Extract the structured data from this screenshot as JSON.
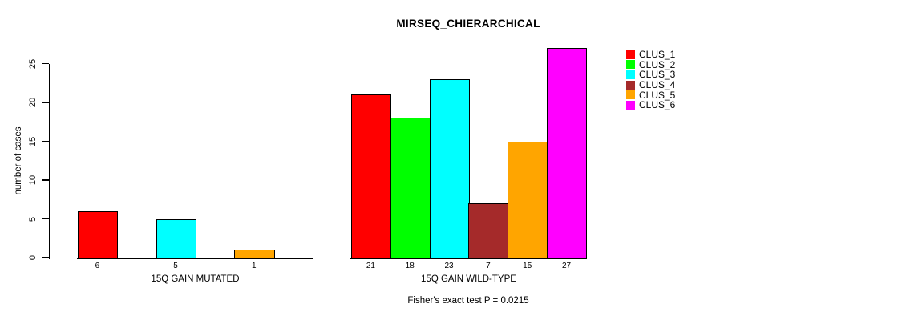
{
  "chart_data": {
    "type": "bar",
    "title": "MIRSEQ_CHIERARCHICAL",
    "ylabel": "number of cases",
    "xlabel": "",
    "ylim": [
      0,
      25
    ],
    "yticks": [
      0,
      5,
      10,
      15,
      20,
      25
    ],
    "grid": false,
    "legend_position": "right",
    "legend": [
      {
        "label": "CLUS_1",
        "color": "#FF0000"
      },
      {
        "label": "CLUS_2",
        "color": "#00FF00"
      },
      {
        "label": "CLUS_3",
        "color": "#00FFFF"
      },
      {
        "label": "CLUS_4",
        "color": "#A52A2A"
      },
      {
        "label": "CLUS_5",
        "color": "#FFA500"
      },
      {
        "label": "CLUS_6",
        "color": "#FF00FF"
      }
    ],
    "groups": [
      {
        "label": "15Q GAIN MUTATED",
        "values": [
          6,
          0,
          5,
          0,
          1,
          0
        ],
        "bar_labels": [
          "6",
          "",
          "5",
          "",
          "1",
          ""
        ]
      },
      {
        "label": "15Q GAIN WILD-TYPE",
        "values": [
          21,
          18,
          23,
          7,
          15,
          27
        ],
        "bar_labels": [
          "21",
          "18",
          "23",
          "7",
          "15",
          "27"
        ]
      }
    ],
    "annotation": "Fisher's exact test P = 0.0215"
  },
  "colors": {
    "axis": "#000000",
    "text": "#000000",
    "background": "#FFFFFF"
  }
}
